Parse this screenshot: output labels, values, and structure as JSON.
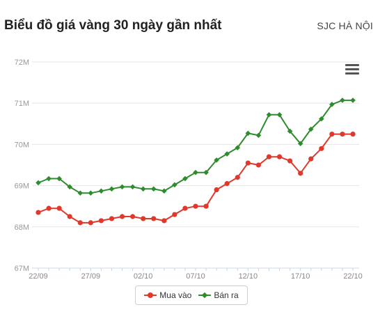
{
  "header": {
    "title": "Biểu đồ giá vàng 30 ngày gần nhất",
    "location": "SJC HÀ NỘI"
  },
  "menu_icon": "hamburger-menu-icon",
  "chart_data": {
    "type": "line",
    "x": [
      "22/09",
      "23/09",
      "24/09",
      "25/09",
      "26/09",
      "27/09",
      "28/09",
      "29/09",
      "30/09",
      "01/10",
      "02/10",
      "03/10",
      "04/10",
      "05/10",
      "06/10",
      "07/10",
      "08/10",
      "09/10",
      "10/10",
      "11/10",
      "12/10",
      "13/10",
      "14/10",
      "15/10",
      "16/10",
      "17/10",
      "18/10",
      "19/10",
      "20/10",
      "21/10",
      "22/10"
    ],
    "x_tick_labels": [
      "22/09",
      "27/09",
      "02/10",
      "07/10",
      "12/10",
      "17/10",
      "22/10"
    ],
    "y_tick_labels": [
      "67M",
      "68M",
      "69M",
      "70M",
      "71M",
      "72M"
    ],
    "ylim": [
      67,
      72
    ],
    "unit": "M",
    "grid": true,
    "legend_position": "bottom",
    "series": [
      {
        "name": "Mua vào",
        "color": "#e0392b",
        "marker": "circle",
        "values": [
          68.35,
          68.45,
          68.45,
          68.25,
          68.1,
          68.1,
          68.15,
          68.2,
          68.25,
          68.25,
          68.2,
          68.2,
          68.15,
          68.3,
          68.45,
          68.5,
          68.5,
          68.9,
          69.05,
          69.2,
          69.55,
          69.5,
          69.7,
          69.7,
          69.6,
          69.3,
          69.65,
          69.9,
          70.25,
          70.25,
          70.25
        ]
      },
      {
        "name": "Bán ra",
        "color": "#2e8b2e",
        "marker": "diamond",
        "values": [
          69.07,
          69.17,
          69.17,
          68.97,
          68.82,
          68.82,
          68.87,
          68.92,
          68.97,
          68.97,
          68.92,
          68.92,
          68.87,
          69.02,
          69.17,
          69.32,
          69.32,
          69.62,
          69.77,
          69.92,
          70.27,
          70.22,
          70.72,
          70.72,
          70.32,
          70.02,
          70.37,
          70.62,
          70.97,
          71.07,
          71.07
        ]
      }
    ]
  }
}
